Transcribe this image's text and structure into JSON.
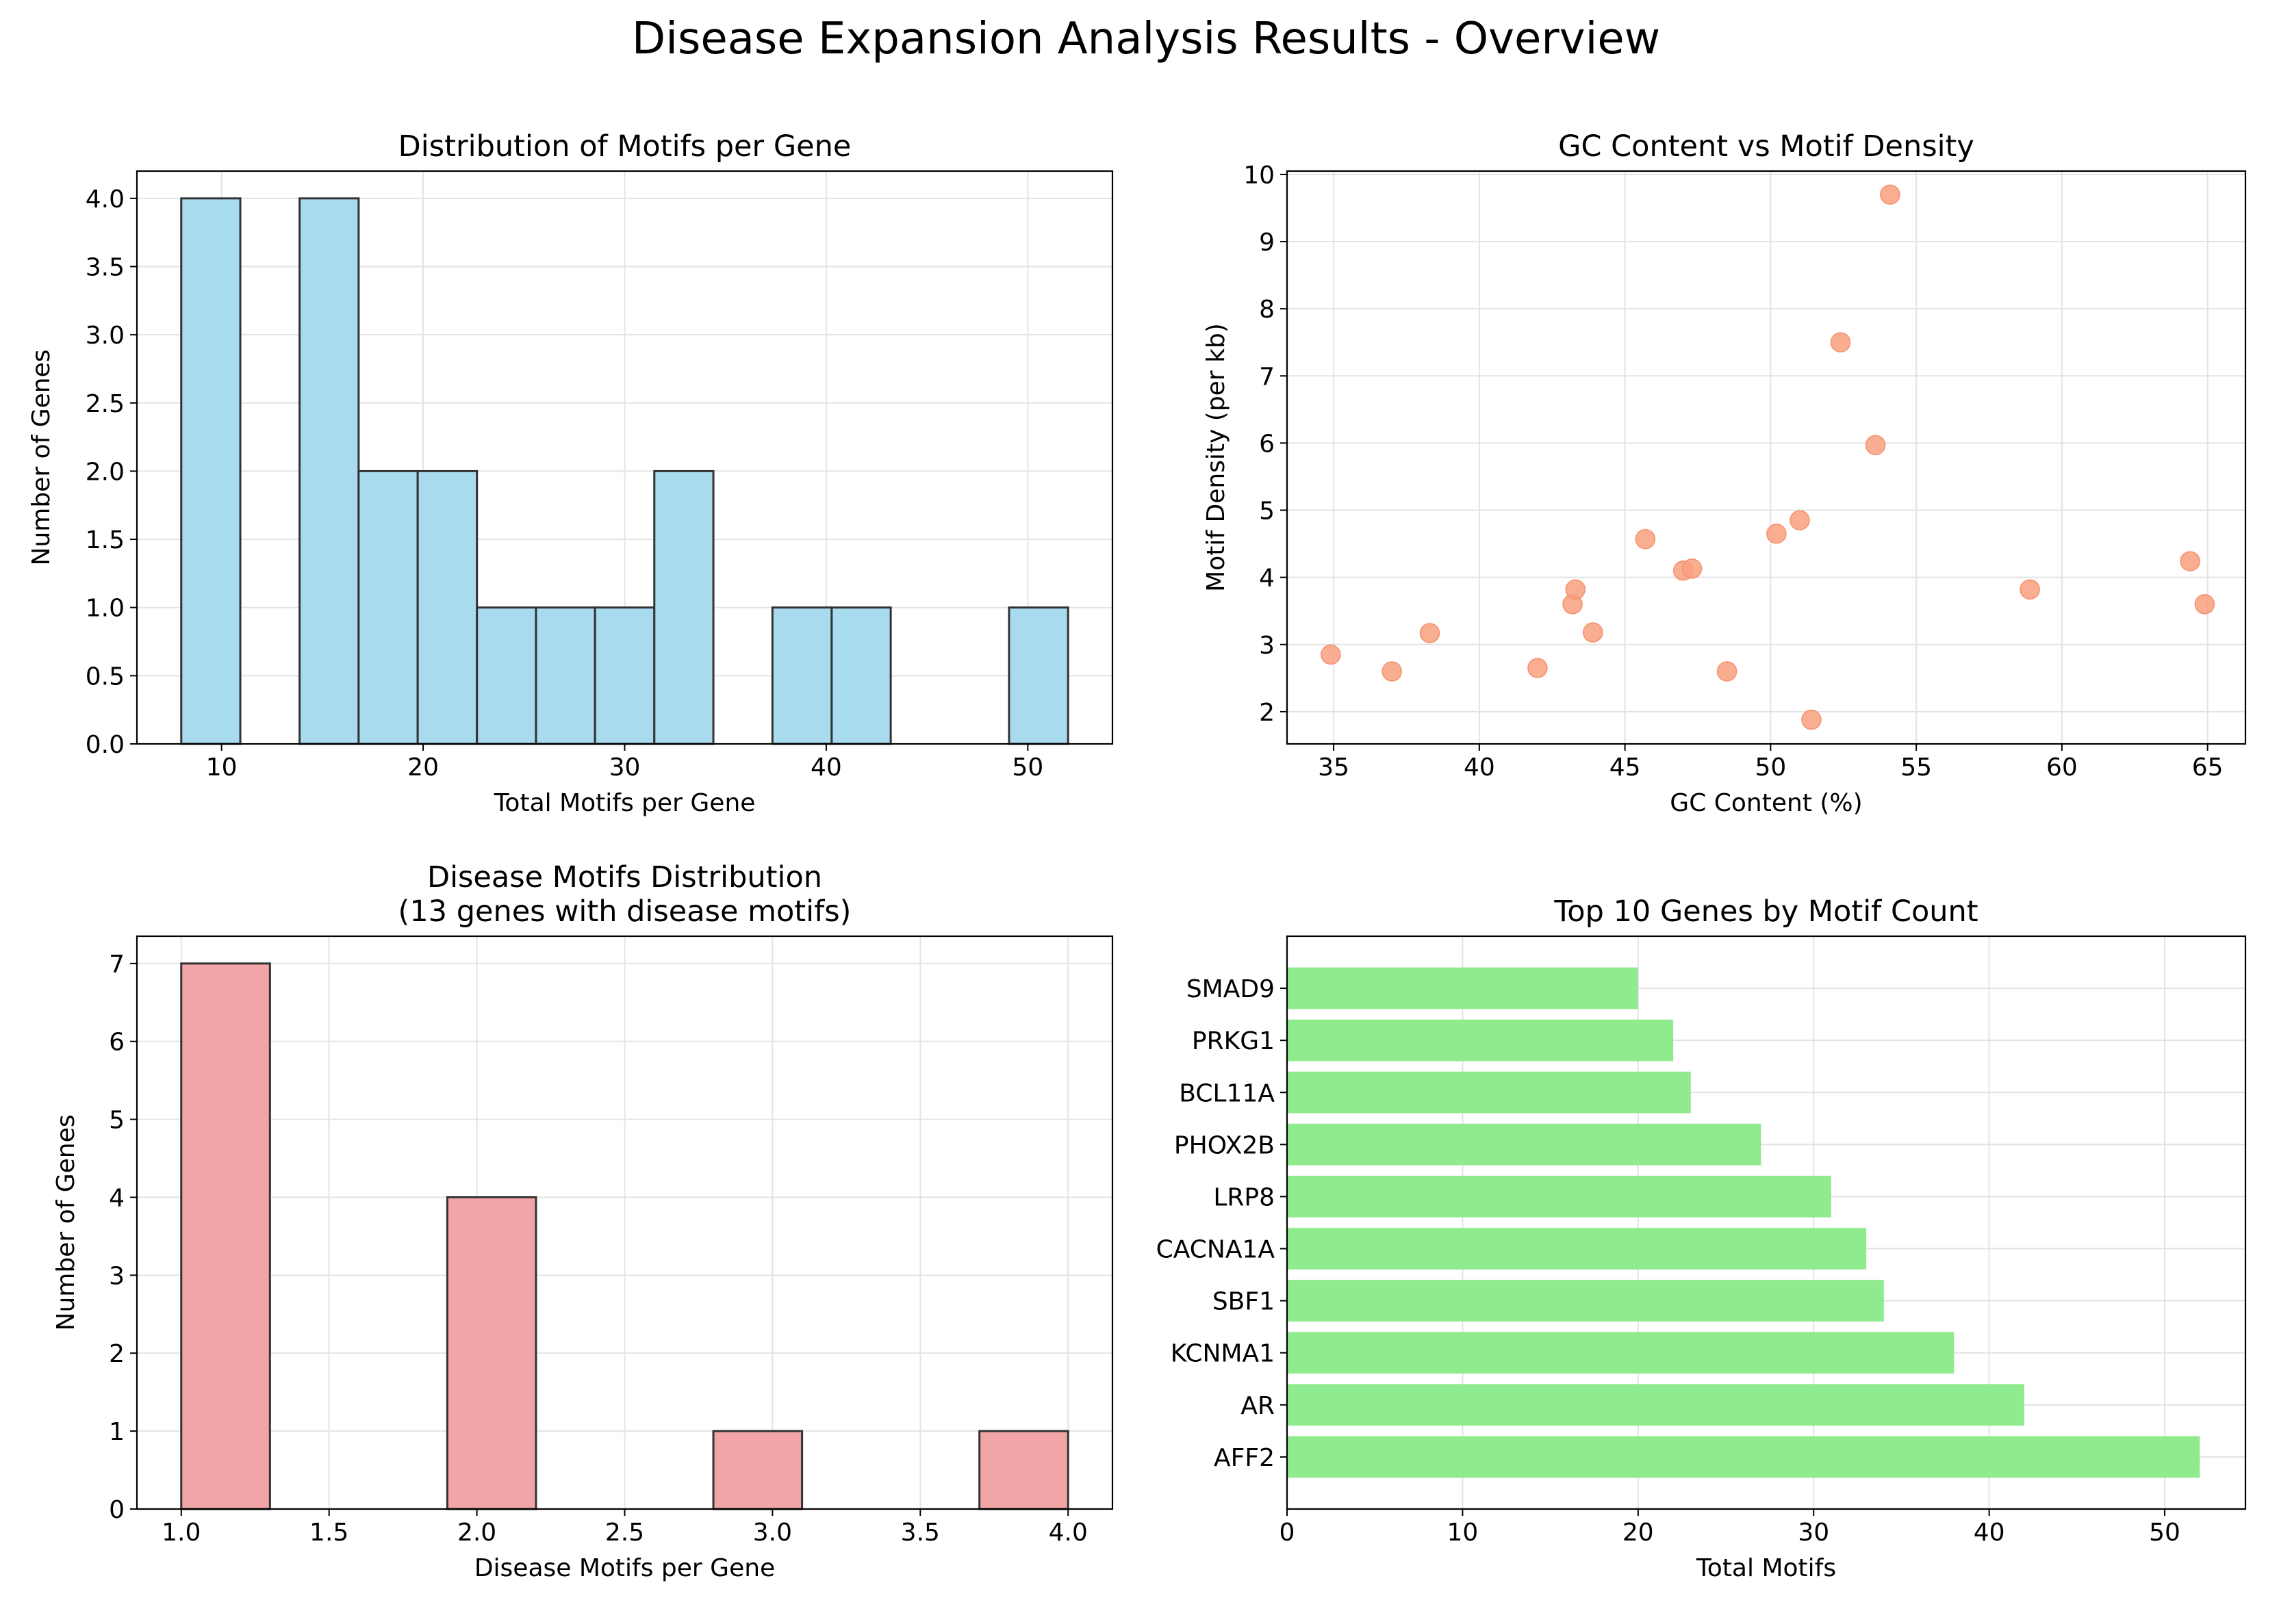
{
  "title": "Disease Expansion Analysis Results - Overview",
  "colors": {
    "hist1": "#a8dbee",
    "scatter": "#f9a07e",
    "hist2": "#f2a5a7",
    "barh": "#90ea8e",
    "edge": "#333333",
    "grid": "#e3e3e3"
  },
  "chart_data": [
    {
      "type": "bar",
      "title": "Distribution of Motifs per Gene",
      "xlabel": "Total Motifs per Gene",
      "ylabel": "Number of Genes",
      "bin_edges": [
        8,
        10.93,
        13.87,
        16.8,
        19.73,
        22.67,
        25.6,
        28.53,
        31.47,
        34.4,
        37.33,
        40.27,
        43.2,
        46.13,
        49.07,
        52
      ],
      "values": [
        4,
        0,
        4,
        2,
        2,
        1,
        1,
        1,
        2,
        0,
        1,
        1,
        0,
        0,
        1
      ],
      "xlim": [
        5.8,
        54.2
      ],
      "ylim": [
        0,
        4.2
      ],
      "xticks": [
        10,
        20,
        30,
        40,
        50
      ],
      "xtick_labels": [
        "10",
        "20",
        "30",
        "40",
        "50"
      ],
      "yticks": [
        0,
        0.5,
        1,
        1.5,
        2,
        2.5,
        3,
        3.5,
        4
      ],
      "ytick_labels": [
        "0.0",
        "0.5",
        "1.0",
        "1.5",
        "2.0",
        "2.5",
        "3.0",
        "3.5",
        "4.0"
      ],
      "grid": true
    },
    {
      "type": "scatter",
      "title": "GC Content vs Motif Density",
      "xlabel": "GC Content (%)",
      "ylabel": "Motif Density (per kb)",
      "x": [
        34.9,
        37.0,
        38.3,
        42.0,
        43.2,
        43.3,
        43.9,
        45.7,
        47.0,
        47.3,
        48.5,
        50.2,
        51.0,
        51.4,
        52.4,
        53.6,
        54.1,
        58.9,
        64.4,
        64.9
      ],
      "y": [
        2.85,
        2.6,
        3.17,
        2.65,
        3.6,
        3.82,
        3.18,
        4.57,
        4.1,
        4.13,
        2.6,
        4.65,
        4.85,
        1.88,
        7.5,
        5.97,
        9.7,
        3.82,
        4.24,
        3.6
      ],
      "xlim": [
        33.4,
        66.3
      ],
      "ylim": [
        1.52,
        10.05
      ],
      "xticks": [
        35,
        40,
        45,
        50,
        55,
        60,
        65
      ],
      "xtick_labels": [
        "35",
        "40",
        "45",
        "50",
        "55",
        "60",
        "65"
      ],
      "yticks": [
        2,
        3,
        4,
        5,
        6,
        7,
        8,
        9,
        10
      ],
      "ytick_labels": [
        "2",
        "3",
        "4",
        "5",
        "6",
        "7",
        "8",
        "9",
        "10"
      ],
      "grid": true
    },
    {
      "type": "bar",
      "title": "Disease Motifs Distribution\n(13 genes with disease motifs)",
      "xlabel": "Disease Motifs per Gene",
      "ylabel": "Number of Genes",
      "bin_edges": [
        1.0,
        1.3,
        1.6,
        1.9,
        2.2,
        2.5,
        2.8,
        3.1,
        3.4,
        3.7,
        4.0
      ],
      "values": [
        7,
        0,
        0,
        4,
        0,
        0,
        1,
        0,
        0,
        1
      ],
      "xlim": [
        0.85,
        4.15
      ],
      "ylim": [
        0,
        7.35
      ],
      "xticks": [
        1.0,
        1.5,
        2.0,
        2.5,
        3.0,
        3.5,
        4.0
      ],
      "xtick_labels": [
        "1.0",
        "1.5",
        "2.0",
        "2.5",
        "3.0",
        "3.5",
        "4.0"
      ],
      "yticks": [
        0,
        1,
        2,
        3,
        4,
        5,
        6,
        7
      ],
      "ytick_labels": [
        "0",
        "1",
        "2",
        "3",
        "4",
        "5",
        "6",
        "7"
      ],
      "grid": true
    },
    {
      "type": "bar",
      "orientation": "horizontal",
      "title": "Top 10 Genes by Motif Count",
      "xlabel": "Total Motifs",
      "ylabel": "",
      "categories": [
        "AFF2",
        "AR",
        "KCNMA1",
        "SBF1",
        "CACNA1A",
        "LRP8",
        "PHOX2B",
        "BCL11A",
        "PRKG1",
        "SMAD9"
      ],
      "values": [
        52,
        42,
        38,
        34,
        33,
        31,
        27,
        23,
        22,
        20
      ],
      "xlim": [
        0,
        54.6
      ],
      "xticks": [
        0,
        10,
        20,
        30,
        40,
        50
      ],
      "xtick_labels": [
        "0",
        "10",
        "20",
        "30",
        "40",
        "50"
      ],
      "grid": true
    }
  ]
}
